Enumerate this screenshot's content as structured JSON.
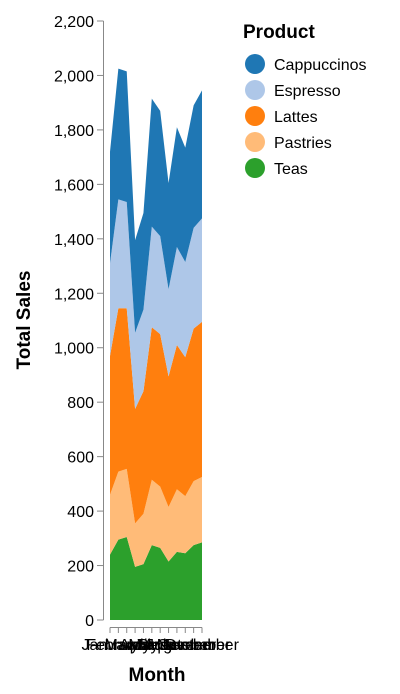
{
  "chart_data": {
    "type": "area",
    "stacked": true,
    "xlabel": "Month",
    "ylabel": "Total Sales",
    "ylim": [
      0,
      2200
    ],
    "y_ticks": [
      0,
      200,
      400,
      600,
      800,
      1000,
      1200,
      1400,
      1600,
      1800,
      2000,
      2200
    ],
    "y_tick_labels": [
      "0",
      "200",
      "400",
      "600",
      "800",
      "1,000",
      "1,200",
      "1,400",
      "1,600",
      "1,800",
      "2,000",
      "2,200"
    ],
    "x": [
      "January",
      "February",
      "March",
      "April",
      "May",
      "June",
      "July",
      "August",
      "September",
      "October",
      "November",
      "December"
    ],
    "x_tick_labels": [
      "January",
      "February",
      "March",
      "April",
      "May",
      "June",
      "July",
      "August",
      "September",
      "October",
      "November",
      "December"
    ],
    "grid": false,
    "legend_title": "Product",
    "legend_position": "right",
    "series": [
      {
        "name": "Teas",
        "color": "#2ca02c",
        "values": [
          240,
          295,
          305,
          195,
          205,
          275,
          265,
          215,
          250,
          245,
          275,
          285
        ]
      },
      {
        "name": "Pastries",
        "color": "#ffbb78",
        "values": [
          220,
          250,
          250,
          160,
          185,
          240,
          225,
          200,
          230,
          210,
          235,
          240
        ]
      },
      {
        "name": "Lattes",
        "color": "#ff7f0e",
        "values": [
          510,
          600,
          590,
          420,
          450,
          560,
          560,
          480,
          530,
          510,
          560,
          570
        ]
      },
      {
        "name": "Espresso",
        "color": "#aec7e8",
        "values": [
          340,
          400,
          390,
          280,
          300,
          370,
          360,
          320,
          360,
          350,
          370,
          380
        ]
      },
      {
        "name": "Cappuccinos",
        "color": "#1f77b4",
        "values": [
          410,
          480,
          480,
          340,
          355,
          470,
          460,
          390,
          440,
          420,
          450,
          470
        ]
      }
    ],
    "legend_order": [
      "Cappuccinos",
      "Espresso",
      "Lattes",
      "Pastries",
      "Teas"
    ]
  }
}
